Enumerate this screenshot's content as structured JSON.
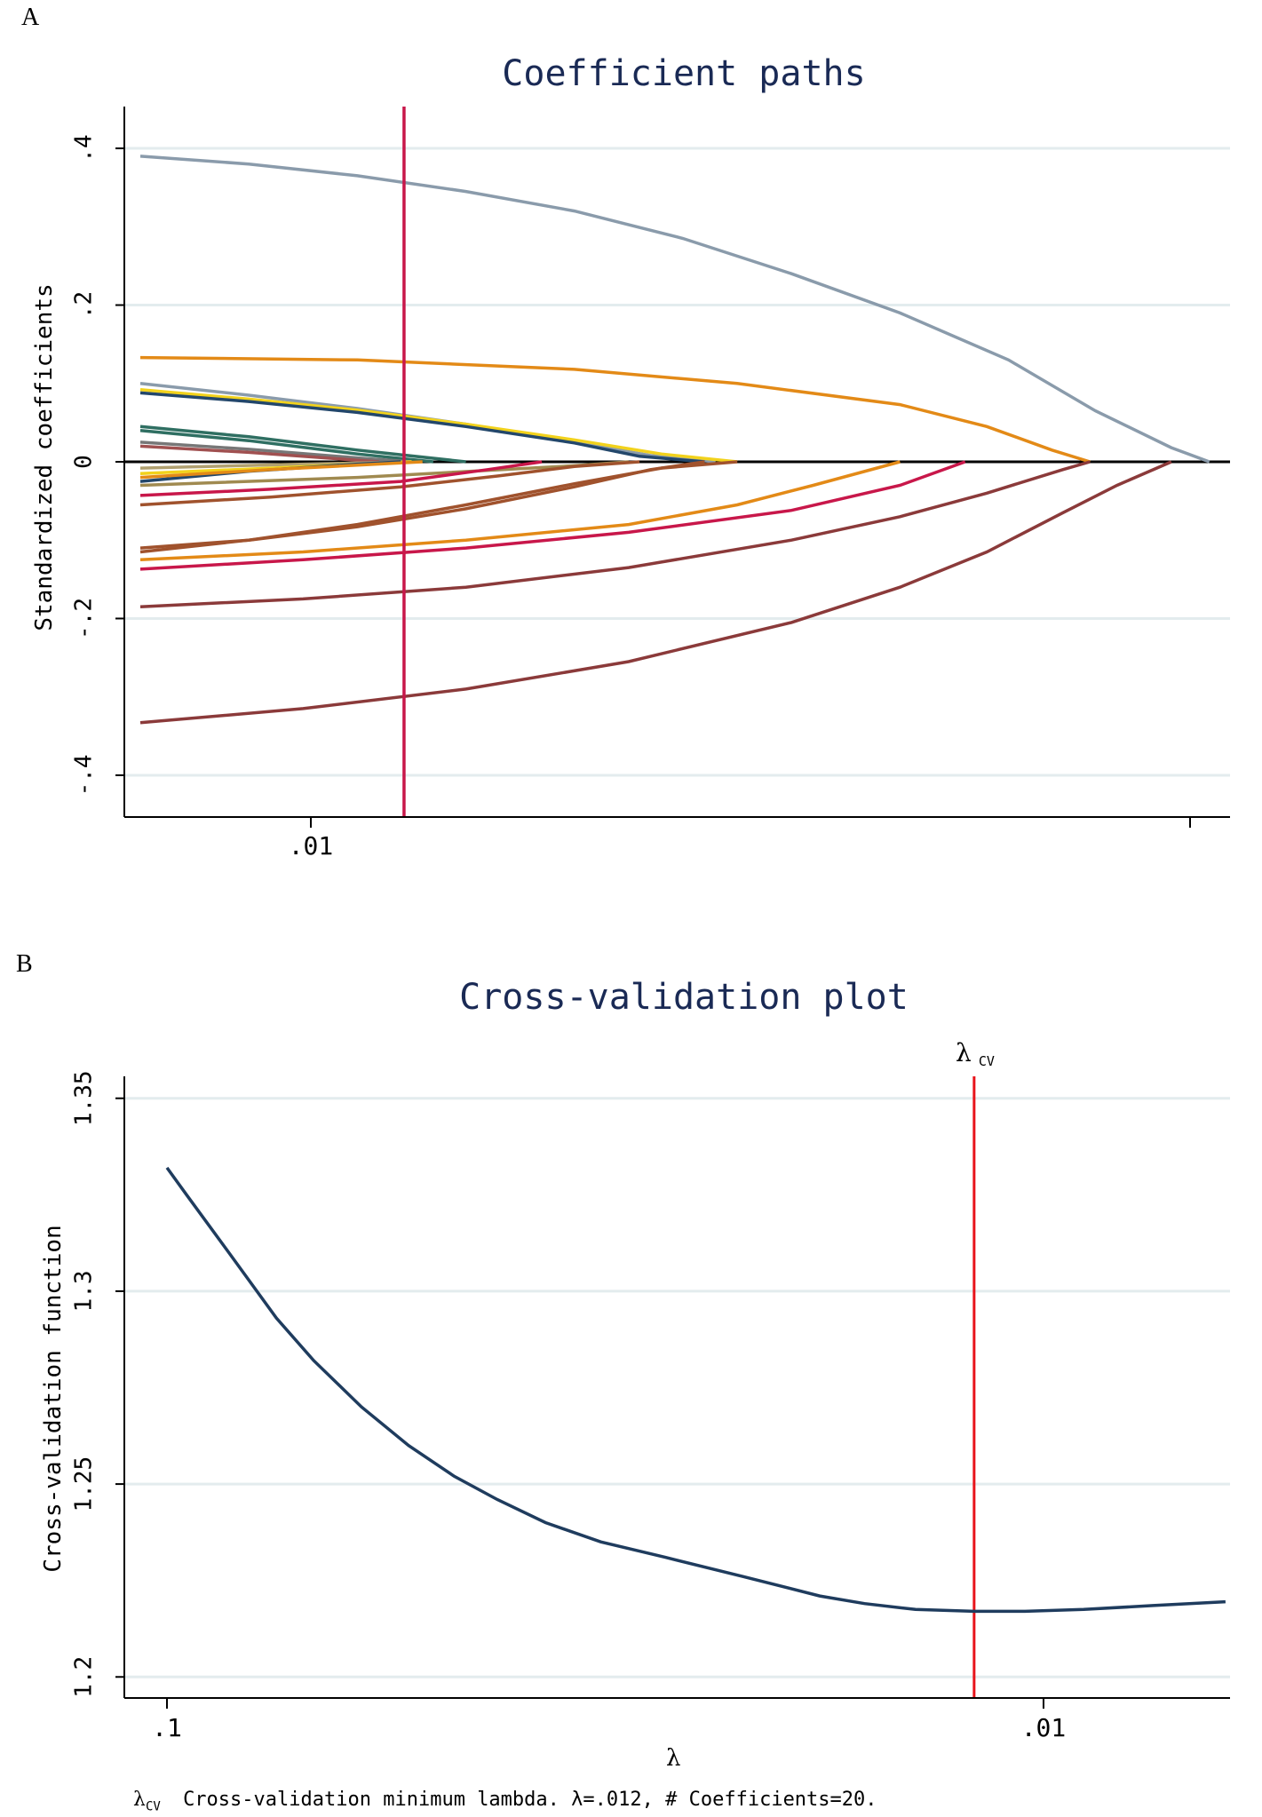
{
  "panel_a_label": "A",
  "panel_b_label": "B",
  "footnote": {
    "symbol": "λ",
    "symbol_sub": "CV",
    "text": "Cross-validation minimum lambda.   λ=.012, # Coefficients=20."
  },
  "chart_data": [
    {
      "type": "line",
      "title": "Coefficient paths",
      "xlabel": "",
      "ylabel": "Standardized coefficients",
      "x_tick_labels": [
        ".01"
      ],
      "y_ticks": [
        0.4,
        0.2,
        0,
        -0.2,
        -0.4
      ],
      "y_tick_labels": [
        ".4",
        ".2",
        "0",
        "-.2",
        "-.4"
      ],
      "ylim": [
        -0.425,
        0.425
      ],
      "x_domain": [
        0,
        1
      ],
      "vline_x": 0.243,
      "vline_color": "#c8174a",
      "series": [
        {
          "color": "#8a9bab",
          "x": [
            0.0,
            0.1,
            0.2,
            0.3,
            0.4,
            0.5,
            0.6,
            0.7,
            0.8,
            0.88,
            0.95,
            0.985
          ],
          "y": [
            0.39,
            0.38,
            0.365,
            0.345,
            0.32,
            0.285,
            0.24,
            0.19,
            0.13,
            0.065,
            0.018,
            0.0
          ]
        },
        {
          "color": "#e38a17",
          "x": [
            0.0,
            0.2,
            0.4,
            0.55,
            0.7,
            0.78,
            0.84,
            0.875
          ],
          "y": [
            0.133,
            0.13,
            0.118,
            0.1,
            0.073,
            0.045,
            0.015,
            0.0
          ]
        },
        {
          "color": "#8a9bab",
          "x": [
            0.0,
            0.1,
            0.2,
            0.3,
            0.4,
            0.47,
            0.53
          ],
          "y": [
            0.1,
            0.085,
            0.068,
            0.048,
            0.025,
            0.008,
            0.0
          ]
        },
        {
          "color": "#f2d21c",
          "x": [
            0.0,
            0.1,
            0.2,
            0.3,
            0.4,
            0.48,
            0.55
          ],
          "y": [
            0.092,
            0.08,
            0.066,
            0.048,
            0.028,
            0.01,
            0.0
          ]
        },
        {
          "color": "#23476b",
          "x": [
            0.0,
            0.1,
            0.2,
            0.3,
            0.4,
            0.46,
            0.52
          ],
          "y": [
            0.088,
            0.077,
            0.063,
            0.045,
            0.024,
            0.007,
            0.0
          ]
        },
        {
          "color": "#2f6f62",
          "x": [
            0.0,
            0.1,
            0.2,
            0.3
          ],
          "y": [
            0.045,
            0.032,
            0.015,
            0.0
          ]
        },
        {
          "color": "#2f6f62",
          "x": [
            0.0,
            0.1,
            0.2,
            0.27
          ],
          "y": [
            0.04,
            0.027,
            0.01,
            0.0
          ]
        },
        {
          "color": "#777777",
          "x": [
            0.0,
            0.1,
            0.2,
            0.25
          ],
          "y": [
            0.025,
            0.016,
            0.005,
            0.0
          ]
        },
        {
          "color": "#a05050",
          "x": [
            0.0,
            0.1,
            0.22
          ],
          "y": [
            0.02,
            0.012,
            0.0
          ]
        },
        {
          "color": "#b0a070",
          "x": [
            0.0,
            0.12,
            0.25
          ],
          "y": [
            -0.008,
            -0.004,
            0.0
          ]
        },
        {
          "color": "#f2d21c",
          "x": [
            0.0,
            0.12,
            0.25
          ],
          "y": [
            -0.015,
            -0.008,
            0.0
          ]
        },
        {
          "color": "#23476b",
          "x": [
            0.0,
            0.1,
            0.2,
            0.24
          ],
          "y": [
            -0.025,
            -0.012,
            -0.003,
            0.0
          ]
        },
        {
          "color": "#e38a17",
          "x": [
            0.0,
            0.12,
            0.26
          ],
          "y": [
            -0.02,
            -0.01,
            0.0
          ]
        },
        {
          "color": "#a08a50",
          "x": [
            0.0,
            0.2,
            0.4,
            0.45
          ],
          "y": [
            -0.03,
            -0.02,
            -0.005,
            0.0
          ]
        },
        {
          "color": "#c8174a",
          "x": [
            0.0,
            0.12,
            0.24,
            0.32,
            0.37
          ],
          "y": [
            -0.043,
            -0.035,
            -0.025,
            -0.01,
            0.0
          ]
        },
        {
          "color": "#a0522d",
          "x": [
            0.0,
            0.12,
            0.24,
            0.33,
            0.4,
            0.46
          ],
          "y": [
            -0.055,
            -0.045,
            -0.032,
            -0.018,
            -0.006,
            0.0
          ]
        },
        {
          "color": "#a0522d",
          "x": [
            0.0,
            0.1,
            0.2,
            0.3,
            0.4,
            0.47,
            0.52
          ],
          "y": [
            -0.11,
            -0.1,
            -0.083,
            -0.06,
            -0.032,
            -0.01,
            0.0
          ]
        },
        {
          "color": "#a0522d",
          "x": [
            0.0,
            0.1,
            0.2,
            0.3,
            0.4,
            0.48,
            0.55
          ],
          "y": [
            -0.115,
            -0.1,
            -0.08,
            -0.055,
            -0.028,
            -0.008,
            0.0
          ]
        },
        {
          "color": "#e38a17",
          "x": [
            0.0,
            0.15,
            0.3,
            0.45,
            0.55,
            0.62,
            0.7
          ],
          "y": [
            -0.125,
            -0.115,
            -0.1,
            -0.08,
            -0.055,
            -0.03,
            0.0
          ]
        },
        {
          "color": "#c8174a",
          "x": [
            0.0,
            0.15,
            0.3,
            0.45,
            0.6,
            0.7,
            0.76
          ],
          "y": [
            -0.137,
            -0.125,
            -0.11,
            -0.09,
            -0.062,
            -0.03,
            0.0
          ]
        },
        {
          "color": "#8b3a3a",
          "x": [
            0.0,
            0.15,
            0.3,
            0.45,
            0.6,
            0.7,
            0.78,
            0.85,
            0.875
          ],
          "y": [
            -0.185,
            -0.175,
            -0.16,
            -0.135,
            -0.1,
            -0.07,
            -0.04,
            -0.01,
            0.0
          ]
        },
        {
          "color": "#8b3a3a",
          "x": [
            0.0,
            0.15,
            0.3,
            0.45,
            0.6,
            0.7,
            0.78,
            0.85,
            0.9,
            0.95
          ],
          "y": [
            -0.333,
            -0.315,
            -0.29,
            -0.255,
            -0.205,
            -0.16,
            -0.115,
            -0.065,
            -0.03,
            0.0
          ]
        }
      ]
    },
    {
      "type": "line",
      "title": "Cross-validation plot",
      "xlabel": "λ",
      "ylabel": "Cross-validation function",
      "x_ticks": [
        0.1,
        0.01
      ],
      "x_tick_labels": [
        ".1",
        ".01"
      ],
      "y_ticks": [
        1.35,
        1.3,
        1.25,
        1.2
      ],
      "y_tick_labels": [
        "1.35",
        "1.3",
        "1.25",
        "1.2"
      ],
      "ylim": [
        1.195,
        1.355
      ],
      "x_log_range": [
        0.104,
        0.0058
      ],
      "vline_x": 0.012,
      "vline_label": "λ",
      "vline_label_sub": "CV",
      "vline_color": "#e8141a",
      "series": [
        {
          "name": "CV function",
          "color": "#1f3c5e",
          "x": [
            0.1,
            0.095,
            0.085,
            0.075,
            0.068,
            0.06,
            0.053,
            0.047,
            0.042,
            0.037,
            0.032,
            0.027,
            0.022,
            0.018,
            0.016,
            0.014,
            0.012,
            0.0105,
            0.009,
            0.0075,
            0.0062
          ],
          "y": [
            1.332,
            1.325,
            1.31,
            1.293,
            1.282,
            1.27,
            1.26,
            1.252,
            1.246,
            1.24,
            1.235,
            1.231,
            1.226,
            1.221,
            1.219,
            1.2175,
            1.217,
            1.217,
            1.2175,
            1.2185,
            1.2195
          ]
        }
      ]
    }
  ]
}
